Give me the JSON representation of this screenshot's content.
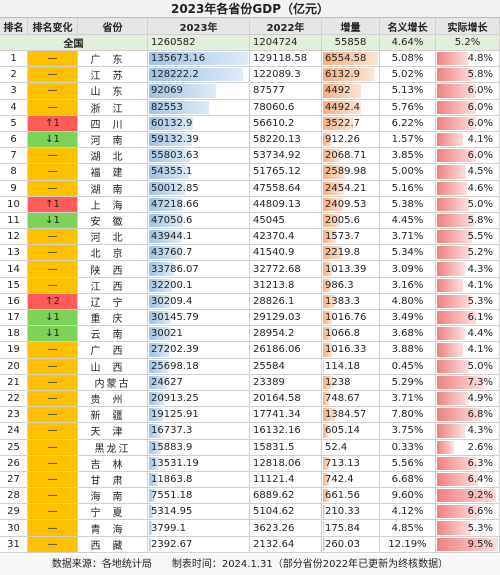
{
  "title": "2023年各省份GDP（亿元）",
  "columns": [
    "排名",
    "排名变化",
    "省份",
    "2023年",
    "2022年",
    "增量",
    "名义增长",
    "实际增长"
  ],
  "total": {
    "label": "全国",
    "values": [
      1260582,
      1204724,
      55858,
      "4.64%",
      "5.2%"
    ]
  },
  "rows": [
    [
      1,
      "—",
      "广东",
      135673.16,
      129118.58,
      6554.58,
      "5.08%",
      "4.8%"
    ],
    [
      2,
      "—",
      "江苏",
      128222.2,
      122089.3,
      6132.9,
      "5.02%",
      "5.8%"
    ],
    [
      3,
      "—",
      "山东",
      92069,
      87577,
      4492,
      "5.13%",
      "6.0%"
    ],
    [
      4,
      "—",
      "浙江",
      82553,
      78060.6,
      4492.4,
      "5.76%",
      "6.0%"
    ],
    [
      5,
      "↑1",
      "四川",
      60132.9,
      56610.2,
      3522.7,
      "6.22%",
      "6.0%"
    ],
    [
      6,
      "↓1",
      "河南",
      59132.39,
      58220.13,
      912.26,
      "1.57%",
      "4.1%"
    ],
    [
      7,
      "—",
      "湖北",
      55803.63,
      53734.92,
      2068.71,
      "3.85%",
      "6.0%"
    ],
    [
      8,
      "—",
      "福建",
      54355.1,
      51765.12,
      2589.98,
      "5.00%",
      "4.5%"
    ],
    [
      9,
      "—",
      "湖南",
      50012.85,
      47558.64,
      2454.21,
      "5.16%",
      "4.6%"
    ],
    [
      10,
      "↑1",
      "上海",
      47218.66,
      44809.13,
      2409.53,
      "5.38%",
      "5.0%"
    ],
    [
      11,
      "↓1",
      "安徽",
      47050.6,
      45045,
      2005.6,
      "4.45%",
      "5.8%"
    ],
    [
      12,
      "—",
      "河北",
      43944.1,
      42370.4,
      1573.7,
      "3.71%",
      "5.5%"
    ],
    [
      13,
      "—",
      "北京",
      43760.7,
      41540.9,
      2219.8,
      "5.34%",
      "5.2%"
    ],
    [
      14,
      "—",
      "陕西",
      33786.07,
      32772.68,
      1013.39,
      "3.09%",
      "4.3%"
    ],
    [
      15,
      "—",
      "江西",
      32200.1,
      31213.8,
      986.3,
      "3.16%",
      "4.1%"
    ],
    [
      16,
      "↑2",
      "辽宁",
      30209.4,
      28826.1,
      1383.3,
      "4.80%",
      "5.3%"
    ],
    [
      17,
      "↓1",
      "重庆",
      30145.79,
      29129.03,
      1016.76,
      "3.49%",
      "6.1%"
    ],
    [
      18,
      "↓1",
      "云南",
      30021,
      28954.2,
      1066.8,
      "3.68%",
      "4.4%"
    ],
    [
      19,
      "—",
      "广西",
      27202.39,
      26186.06,
      1016.33,
      "3.88%",
      "4.1%"
    ],
    [
      20,
      "—",
      "山西",
      25698.18,
      25584,
      114.18,
      "0.45%",
      "5.0%"
    ],
    [
      21,
      "—",
      "内蒙古",
      24627,
      23389,
      1238,
      "5.29%",
      "7.3%"
    ],
    [
      22,
      "—",
      "贵州",
      20913.25,
      20164.58,
      748.67,
      "3.71%",
      "4.9%"
    ],
    [
      23,
      "—",
      "新疆",
      19125.91,
      17741.34,
      1384.57,
      "7.80%",
      "6.8%"
    ],
    [
      24,
      "—",
      "天津",
      16737.3,
      16132.16,
      605.14,
      "3.75%",
      "4.3%"
    ],
    [
      25,
      "—",
      "黑龙江",
      15883.9,
      15831.5,
      52.4,
      "0.33%",
      "2.6%"
    ],
    [
      26,
      "—",
      "吉林",
      13531.19,
      12818.06,
      713.13,
      "5.56%",
      "6.3%"
    ],
    [
      27,
      "—",
      "甘肃",
      11863.8,
      11121.4,
      742.4,
      "6.68%",
      "6.4%"
    ],
    [
      28,
      "—",
      "海南",
      7551.18,
      6889.62,
      661.56,
      "9.60%",
      "9.2%"
    ],
    [
      29,
      "—",
      "宁夏",
      5314.95,
      5104.62,
      210.33,
      "4.12%",
      "6.6%"
    ],
    [
      30,
      "—",
      "青海",
      3799.1,
      3623.26,
      175.84,
      "4.85%",
      "5.3%"
    ],
    [
      31,
      "—",
      "西藏",
      2392.67,
      2132.64,
      260.03,
      "12.19%",
      "9.5%"
    ]
  ],
  "footer": "数据来源：各地统计局　　制表时间：2024.1.31（部分省份2022年已更新为终核数据）"
}
